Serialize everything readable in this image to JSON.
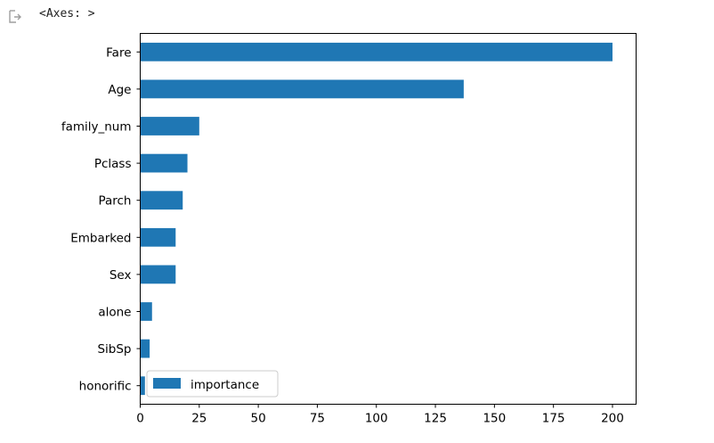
{
  "output": {
    "text": "<Axes: >",
    "icon": "output-arrow-icon"
  },
  "chart_data": {
    "type": "bar",
    "orientation": "horizontal",
    "categories": [
      "honorific",
      "SibSp",
      "alone",
      "Sex",
      "Embarked",
      "Parch",
      "Pclass",
      "family_num",
      "Age",
      "Fare"
    ],
    "series": [
      {
        "name": "importance",
        "values": [
          2,
          4,
          5,
          15,
          15,
          18,
          20,
          25,
          137,
          200
        ],
        "color": "#1f77b4"
      }
    ],
    "xlim": [
      0,
      210
    ],
    "xticks": [
      0,
      25,
      50,
      75,
      100,
      125,
      150,
      175,
      200
    ],
    "legend": {
      "position": "lower-left",
      "label": "importance"
    },
    "grid": false
  }
}
